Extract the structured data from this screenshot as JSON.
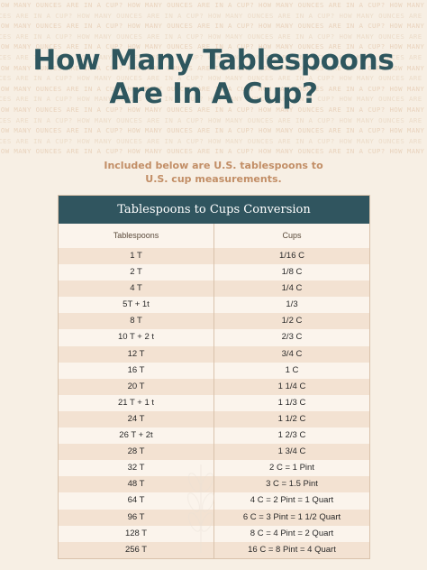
{
  "background_pattern_text": "HOW MANY OUNCES ARE IN A CUP?",
  "title_line1": "How Many Tablespoons",
  "title_line2": "Are In A Cup?",
  "subtitle_line1": "Included below are U.S. tablespoons to",
  "subtitle_line2": "U.S. cup measurements.",
  "table": {
    "title": "Tablespoons to Cups Conversion",
    "col1_header": "Tablespoons",
    "col2_header": "Cups",
    "rows": [
      [
        "1 T",
        "1/16 C"
      ],
      [
        "2 T",
        "1/8 C"
      ],
      [
        "4 T",
        "1/4 C"
      ],
      [
        "5T + 1t",
        "1/3"
      ],
      [
        "8 T",
        "1/2 C"
      ],
      [
        "10 T + 2 t",
        "2/3 C"
      ],
      [
        "12 T",
        "3/4 C"
      ],
      [
        "16 T",
        "1 C"
      ],
      [
        "20 T",
        "1 1/4 C"
      ],
      [
        "21 T + 1 t",
        "1 1/3 C"
      ],
      [
        "24 T",
        "1 1/2 C"
      ],
      [
        "26 T + 2t",
        "1 2/3 C"
      ],
      [
        "28 T",
        "1 3/4 C"
      ],
      [
        "32 T",
        "2 C = 1 Pint"
      ],
      [
        "48 T",
        "3 C = 1.5 Pint"
      ],
      [
        "64 T",
        "4 C = 2 Pint = 1 Quart"
      ],
      [
        "96 T",
        "6 C = 3 Pint = 1 1/2 Quart"
      ],
      [
        "128 T",
        "8 C = 4 Pint = 2 Quart"
      ],
      [
        "256 T",
        "16 C = 8 Pint = 4 Quart"
      ]
    ]
  },
  "colors": {
    "background": "#f7efe4",
    "title": "#2e565e",
    "subtitle": "#c28e66",
    "table_header_bg": "#30555f",
    "row_shaded": "#f3e2d2",
    "row_plain": "#fbf4ec"
  },
  "watermark_icon": "wheat-sprig-icon"
}
